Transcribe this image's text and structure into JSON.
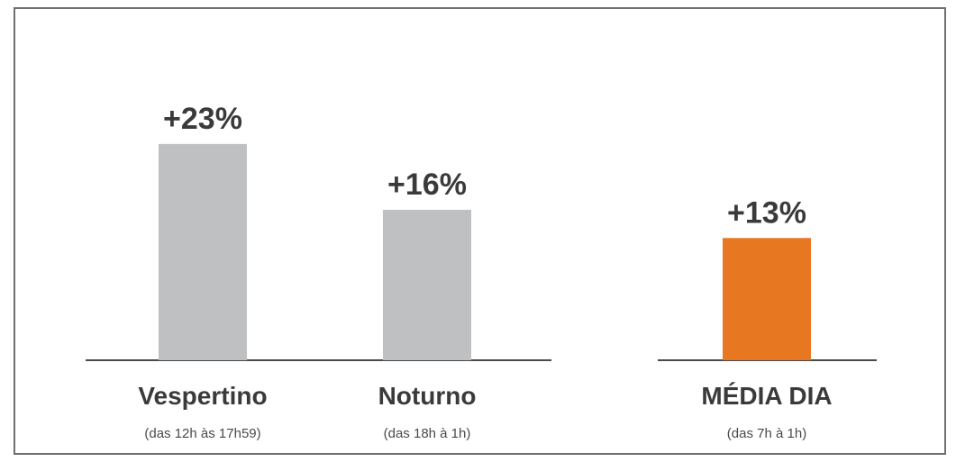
{
  "chart_data": {
    "type": "bar",
    "categories": [
      "Vespertino",
      "Noturno",
      "MÉDIA DIA"
    ],
    "subtitles": [
      "(das 12h às 17h59)",
      "(das 18h à 1h)",
      "(das 7h à 1h)"
    ],
    "values": [
      23,
      16,
      13
    ],
    "value_labels": [
      "+23%",
      "+16%",
      "+13%"
    ],
    "unit": "%",
    "ylim": [
      0,
      25
    ],
    "grid": false,
    "colors": {
      "bar_default": "#bfc0c2",
      "bar_highlight": "#e87722",
      "text": "#3a3a3a",
      "highlight_text": "#e87722",
      "baseline": "#4a4a4a"
    },
    "highlight_index": 2
  }
}
